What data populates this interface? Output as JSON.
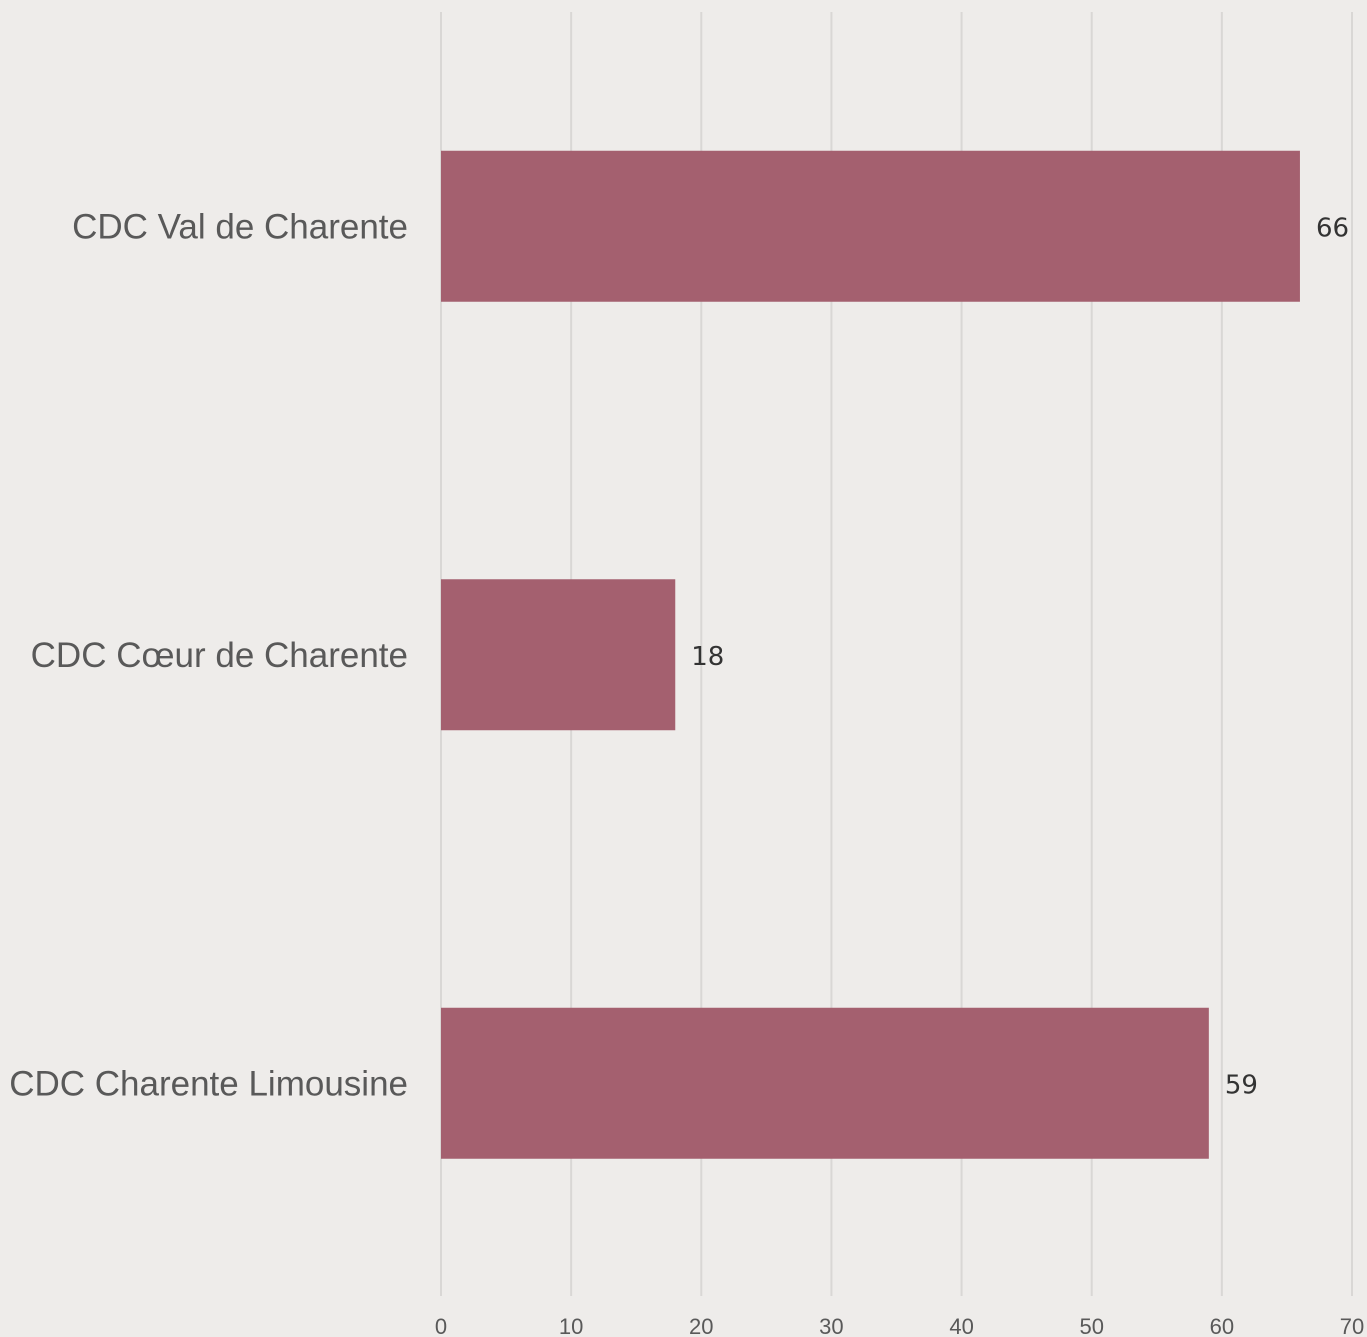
{
  "chart_data": {
    "type": "bar",
    "orientation": "horizontal",
    "categories": [
      "CDC Val de Charente",
      "CDC Cœur de Charente",
      "CDC Charente Limousine"
    ],
    "values": [
      66,
      18,
      59
    ],
    "value_labels": [
      "66",
      "18",
      "59"
    ],
    "xlim": [
      0,
      70
    ],
    "x_ticks": [
      "0",
      "10",
      "20",
      "30",
      "40",
      "50",
      "60",
      "70"
    ],
    "grid": "vertical",
    "legend": "none",
    "colors": {
      "bar": "#a4606f",
      "background": "#eeecea",
      "gridline": "#d9d7d5",
      "label": "#595959",
      "value_label": "#333333"
    }
  }
}
